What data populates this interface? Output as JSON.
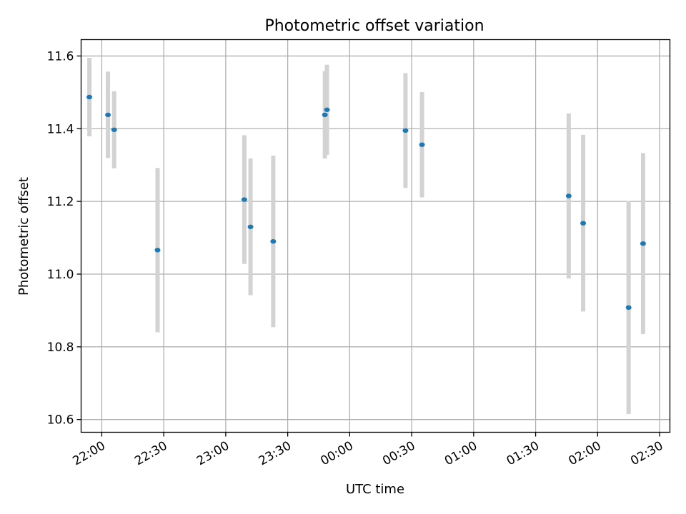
{
  "chart_data": {
    "type": "scatter",
    "title": "Photometric offset variation",
    "xlabel": "UTC time",
    "ylabel": "Photometric offset",
    "x_ticks": [
      "22:00",
      "22:30",
      "23:00",
      "23:30",
      "00:00",
      "00:30",
      "01:00",
      "01:30",
      "02:00",
      "02:30"
    ],
    "x_range": [
      "21:50",
      "02:35"
    ],
    "y_ticks": [
      "10.6",
      "10.8",
      "11.0",
      "11.2",
      "11.4",
      "11.6"
    ],
    "ylim": [
      10.565,
      11.645
    ],
    "grid": true,
    "point_color": "#1f77b4",
    "errorbar_color": "#d3d3d3",
    "points": [
      {
        "x": "21:54",
        "y": 11.487,
        "err": 0.108
      },
      {
        "x": "22:03",
        "y": 11.438,
        "err": 0.119
      },
      {
        "x": "22:06",
        "y": 11.397,
        "err": 0.106
      },
      {
        "x": "22:27",
        "y": 11.066,
        "err": 0.226
      },
      {
        "x": "23:09",
        "y": 11.205,
        "err": 0.177
      },
      {
        "x": "23:12",
        "y": 11.13,
        "err": 0.188
      },
      {
        "x": "23:23",
        "y": 11.09,
        "err": 0.236
      },
      {
        "x": "23:48",
        "y": 11.438,
        "err": 0.12
      },
      {
        "x": "23:49",
        "y": 11.452,
        "err": 0.124
      },
      {
        "x": "00:27",
        "y": 11.395,
        "err": 0.158
      },
      {
        "x": "00:35",
        "y": 11.356,
        "err": 0.145
      },
      {
        "x": "01:46",
        "y": 11.215,
        "err": 0.227
      },
      {
        "x": "01:53",
        "y": 11.14,
        "err": 0.243
      },
      {
        "x": "02:15",
        "y": 10.908,
        "err": 0.293
      },
      {
        "x": "02:22",
        "y": 11.084,
        "err": 0.249
      }
    ]
  }
}
